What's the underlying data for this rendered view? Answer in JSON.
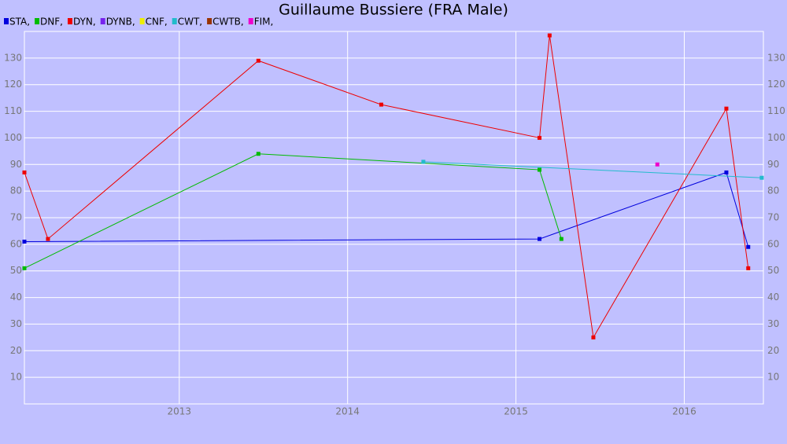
{
  "chart_data": {
    "type": "line",
    "title": "Guillaume Bussiere (FRA Male)",
    "series": [
      {
        "name": "STA,",
        "color": "#0000dd",
        "x": [
          2012.08,
          2015.14,
          2016.25,
          2016.38
        ],
        "values": [
          61,
          62,
          87,
          59
        ]
      },
      {
        "name": "DNF,",
        "color": "#00bb00",
        "x": [
          2012.08,
          2013.47,
          2015.14,
          2015.27
        ],
        "values": [
          51,
          94,
          88,
          62
        ]
      },
      {
        "name": "DYN,",
        "color": "#ee0000",
        "x": [
          2012.08,
          2012.22,
          2013.47,
          2014.2,
          2015.14,
          2015.2,
          2015.46,
          2016.25,
          2016.38
        ],
        "values": [
          87,
          62,
          129,
          112.5,
          100,
          138.5,
          25,
          111,
          51
        ]
      },
      {
        "name": "DYNB,",
        "color": "#7722ee",
        "x": [],
        "values": []
      },
      {
        "name": "CNF,",
        "color": "#eeee00",
        "x": [],
        "values": []
      },
      {
        "name": "CWT,",
        "color": "#22bbcc",
        "x": [
          2014.45,
          2016.46
        ],
        "values": [
          91,
          85
        ]
      },
      {
        "name": "CWTB,",
        "color": "#993300",
        "x": [],
        "values": []
      },
      {
        "name": "FIM,",
        "color": "#ee00cc",
        "x": [
          2015.84
        ],
        "values": [
          90
        ]
      }
    ],
    "xlim": [
      2012.08,
      2016.47
    ],
    "xticks": [
      2013,
      2014,
      2015,
      2016
    ],
    "ylim": [
      0,
      140
    ],
    "yticks": [
      10,
      20,
      30,
      40,
      50,
      60,
      70,
      80,
      90,
      100,
      110,
      120,
      130
    ],
    "grid": true
  }
}
